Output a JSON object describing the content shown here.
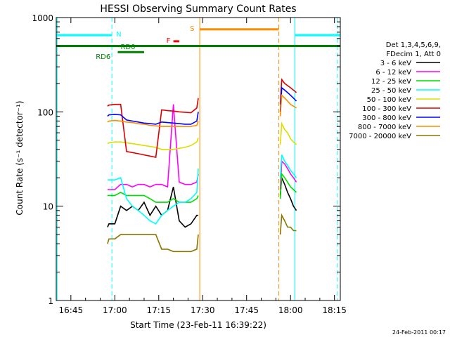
{
  "chart_data": {
    "type": "line",
    "title": "HESSI Observing Summary Count Rates",
    "xlabel": "Start Time (23-Feb-11 16:39:22)",
    "ylabel": "Count Rate (s⁻¹ detector⁻¹)",
    "y_scale": "log",
    "ylim": [
      1,
      1000
    ],
    "xlim_minutes_after_16_40": [
      0,
      97
    ],
    "x_ticks": [
      "16:45",
      "17:00",
      "17:15",
      "17:30",
      "17:45",
      "18:00",
      "18:15"
    ],
    "x_tick_minutes_after_16_40": [
      5,
      20,
      35,
      50,
      65,
      80,
      95
    ],
    "y_ticks": [
      "1",
      "10",
      "100",
      "1000"
    ],
    "y_tick_values": [
      1,
      10,
      100,
      1000
    ],
    "grid": false,
    "legend_header": [
      "Det 1,3,4,5,6,9,",
      "FDecim 1, Att 0"
    ],
    "series": [
      {
        "name": "3 - 6 keV",
        "color": "#000000",
        "x": [
          17.5,
          18,
          20,
          22,
          24,
          26,
          28,
          30,
          32,
          34,
          36,
          38,
          40,
          42,
          44,
          46,
          48,
          48.5,
          76.5,
          77,
          78,
          79,
          80,
          81,
          82
        ],
        "y": [
          6,
          6.5,
          6.5,
          10,
          9,
          10,
          9,
          11,
          8,
          10,
          8,
          9,
          16,
          7,
          6,
          6.5,
          8,
          8,
          13,
          20,
          17,
          14,
          12,
          10,
          9
        ]
      },
      {
        "name": "6 - 12 keV",
        "color": "#ff00ff",
        "x": [
          17.5,
          18,
          20,
          22,
          24,
          26,
          28,
          30,
          32,
          34,
          36,
          38,
          40,
          42,
          44,
          46,
          48,
          48.5,
          76.5,
          77,
          78,
          79,
          80,
          81,
          82
        ],
        "y": [
          15,
          15,
          15,
          17,
          17,
          16,
          17,
          17,
          16,
          17,
          17,
          16,
          120,
          18,
          17,
          17,
          18,
          22,
          15,
          30,
          28,
          25,
          22,
          20,
          18
        ]
      },
      {
        "name": "12 - 25 keV",
        "color": "#00dd00",
        "x": [
          17.5,
          18,
          20,
          22,
          24,
          26,
          28,
          30,
          32,
          34,
          36,
          38,
          40,
          42,
          44,
          46,
          48,
          48.5,
          76.5,
          77,
          78,
          79,
          80,
          81,
          82
        ],
        "y": [
          13,
          13,
          13,
          14,
          13,
          13,
          13,
          13,
          12,
          11,
          11,
          11,
          12,
          11,
          11,
          11,
          12,
          13,
          12,
          22,
          20,
          18,
          16,
          15,
          14
        ]
      },
      {
        "name": "25 - 50 keV",
        "color": "#00ffff",
        "x": [
          17.5,
          18,
          20,
          22,
          24,
          26,
          28,
          30,
          32,
          34,
          36,
          38,
          40,
          42,
          44,
          46,
          48,
          48.5,
          76.5,
          77,
          78,
          79,
          80,
          81,
          82
        ],
        "y": [
          19,
          19,
          19,
          20,
          12,
          10,
          9,
          8,
          7,
          6.5,
          8,
          9,
          10,
          11,
          11,
          12,
          14,
          25,
          20,
          35,
          30,
          27,
          24,
          22,
          20
        ]
      },
      {
        "name": "50 - 100 keV",
        "color": "#dddd00",
        "x": [
          17.5,
          18,
          20,
          22,
          24,
          26,
          28,
          30,
          32,
          34,
          36,
          38,
          40,
          42,
          44,
          46,
          48,
          48.5,
          76.5,
          77,
          78,
          79,
          80,
          81,
          82
        ],
        "y": [
          46,
          47,
          48,
          48,
          47,
          46,
          45,
          44,
          43,
          42,
          40,
          40,
          40,
          41,
          42,
          44,
          48,
          53,
          45,
          75,
          65,
          60,
          52,
          48,
          45
        ]
      },
      {
        "name": "100 - 300 keV",
        "color": "#dd0000",
        "x": [
          17.5,
          18,
          20,
          22,
          24,
          26,
          28,
          30,
          32,
          34,
          36,
          38,
          40,
          42,
          44,
          46,
          48,
          48.5,
          76.5,
          77,
          78,
          79,
          80,
          81,
          82
        ],
        "y": [
          115,
          118,
          120,
          120,
          38,
          37,
          36,
          35,
          34,
          33,
          105,
          103,
          102,
          100,
          99,
          98,
          110,
          140,
          120,
          220,
          200,
          190,
          180,
          170,
          160
        ]
      },
      {
        "name": "300 - 800 keV",
        "color": "#0000ff",
        "x": [
          17.5,
          18,
          20,
          22,
          24,
          26,
          28,
          30,
          32,
          34,
          36,
          38,
          40,
          42,
          44,
          46,
          48,
          48.5,
          76.5,
          77,
          78,
          79,
          80,
          81,
          82
        ],
        "y": [
          90,
          93,
          94,
          93,
          82,
          80,
          78,
          76,
          75,
          74,
          78,
          77,
          76,
          75,
          74,
          74,
          80,
          100,
          100,
          180,
          170,
          160,
          150,
          140,
          130
        ]
      },
      {
        "name": "800 - 7000 keV",
        "color": "#ff8c00",
        "x": [
          17.5,
          18,
          20,
          22,
          24,
          26,
          28,
          30,
          32,
          34,
          36,
          38,
          40,
          42,
          44,
          46,
          48,
          48.5,
          76.5,
          77,
          78,
          79,
          80,
          81,
          82
        ],
        "y": [
          78,
          80,
          81,
          80,
          78,
          77,
          75,
          74,
          72,
          71,
          70,
          70,
          70,
          70,
          70,
          70,
          72,
          80,
          90,
          150,
          140,
          130,
          120,
          115,
          110
        ]
      },
      {
        "name": "7000 - 20000 keV",
        "color": "#8b7500",
        "x": [
          17.5,
          18,
          20,
          22,
          24,
          26,
          28,
          30,
          32,
          34,
          36,
          38,
          40,
          42,
          44,
          46,
          48,
          48.5,
          76.5,
          77,
          78,
          79,
          80,
          81,
          82
        ],
        "y": [
          4,
          4.5,
          4.5,
          5,
          5,
          5,
          5,
          5,
          5,
          5,
          3.5,
          3.5,
          3.3,
          3.3,
          3.3,
          3.3,
          3.5,
          5,
          5,
          8,
          7,
          6,
          6,
          5.5,
          5.5
        ]
      }
    ],
    "status_bars": [
      {
        "label": "N",
        "color": "#00ffff",
        "value": 650,
        "segments": [
          [
            0,
            19
          ],
          [
            81.5,
            97
          ]
        ]
      },
      {
        "label": "S",
        "color": "#ff8c00",
        "value": 750,
        "segments": [
          [
            49,
            76
          ]
        ]
      },
      {
        "label": "F",
        "color": "#ff0000",
        "value": 560,
        "segments": [
          [
            40,
            42
          ]
        ]
      },
      {
        "label": "",
        "color": "#008000",
        "value": 500,
        "segments": [
          [
            0,
            97
          ]
        ]
      },
      {
        "label": "RD0",
        "color": "#008000",
        "value": 430,
        "segments": [
          [
            21,
            30
          ]
        ]
      },
      {
        "label": "RD6",
        "color": "#008000",
        "value": 500,
        "segments": []
      }
    ],
    "markers": [
      {
        "x": 0.3,
        "color": "#00ffff",
        "style": "solid"
      },
      {
        "x": 19,
        "color": "#00ffff",
        "style": "dashed"
      },
      {
        "x": 49,
        "color": "#ff8c00",
        "style": "solid"
      },
      {
        "x": 76,
        "color": "#ff8c00",
        "style": "dashed"
      },
      {
        "x": 81.5,
        "color": "#00ffff",
        "style": "solid"
      },
      {
        "x": 96,
        "color": "#00ffff",
        "style": "dashed"
      }
    ],
    "footer": "24-Feb-2011 00:17"
  }
}
